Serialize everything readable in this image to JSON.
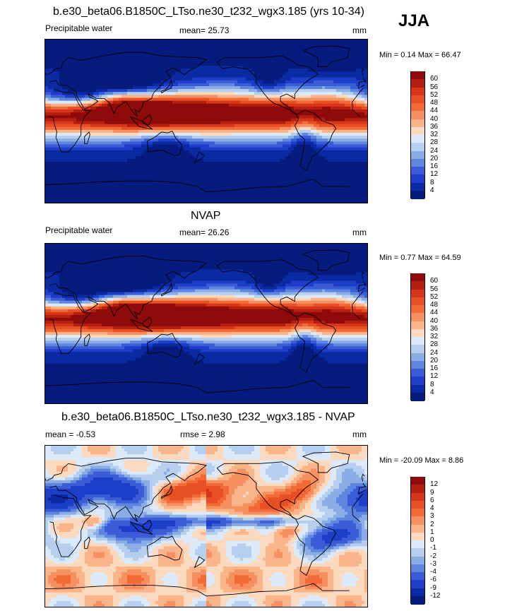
{
  "season": "JJA",
  "panels": [
    {
      "id": "model",
      "title": "b.e30_beta06.B1850C_LTso.ne30_t232_wgx3.185 (yrs 10-34)",
      "left_label": "Precipitable water",
      "center_label": "mean=  25.73",
      "units": "mm",
      "minmax": "Min =   0.14 Max =  66.47",
      "field": "pw_model",
      "colorbar": {
        "labels": [
          "60",
          "56",
          "52",
          "48",
          "44",
          "40",
          "36",
          "32",
          "28",
          "24",
          "20",
          "16",
          "12",
          "8",
          "4"
        ],
        "colors": [
          "#8f0a0a",
          "#b51f0f",
          "#d8361a",
          "#e85024",
          "#f26a35",
          "#f69060",
          "#f9b48a",
          "#fbd9bf",
          "#dce9f8",
          "#b6cfef",
          "#8aade6",
          "#5f86de",
          "#3a5dd7",
          "#1d3ec8",
          "#0a2aa4",
          "#061b7e"
        ]
      }
    },
    {
      "id": "obs",
      "title": "NVAP",
      "left_label": "Precipitable water",
      "center_label": "mean=  26.26",
      "units": "mm",
      "minmax": "Min =   0.77 Max =  64.59",
      "field": "pw_obs",
      "colorbar": {
        "labels": [
          "60",
          "56",
          "52",
          "48",
          "44",
          "40",
          "36",
          "32",
          "28",
          "24",
          "20",
          "16",
          "12",
          "8",
          "4"
        ],
        "colors": [
          "#8f0a0a",
          "#b51f0f",
          "#d8361a",
          "#e85024",
          "#f26a35",
          "#f69060",
          "#f9b48a",
          "#fbd9bf",
          "#dce9f8",
          "#b6cfef",
          "#8aade6",
          "#5f86de",
          "#3a5dd7",
          "#1d3ec8",
          "#0a2aa4",
          "#061b7e"
        ]
      }
    },
    {
      "id": "diff",
      "title": "b.e30_beta06.B1850C_LTso.ne30_t232_wgx3.185 - NVAP",
      "left_label": "mean =  -0.53",
      "center_label": "rmse =   2.98",
      "units": "mm",
      "minmax": "Min = -20.09 Max =   8.86",
      "field": "pw_diff",
      "colorbar": {
        "labels": [
          "12",
          "9",
          "6",
          "4",
          "3",
          "2",
          "1",
          "0",
          "-1",
          "-2",
          "-3",
          "-4",
          "-6",
          "-9",
          "-12"
        ],
        "colors": [
          "#8f0a0a",
          "#b51f0f",
          "#d8361a",
          "#e85024",
          "#f26a35",
          "#f69060",
          "#f9b48a",
          "#fbd9bf",
          "#dce9f8",
          "#b6cfef",
          "#8aade6",
          "#5f86de",
          "#3a5dd7",
          "#1d3ec8",
          "#0a2aa4",
          "#061b7e"
        ]
      }
    }
  ]
}
